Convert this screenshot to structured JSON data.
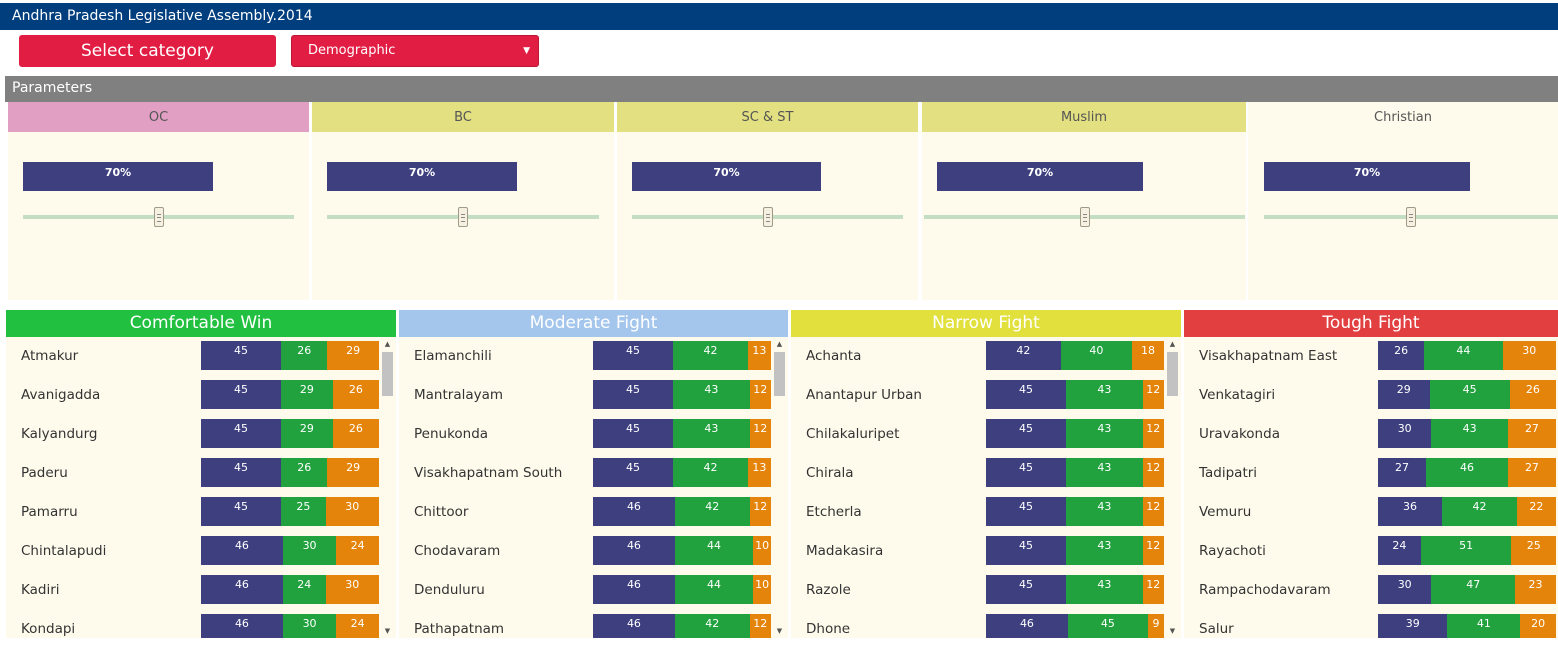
{
  "header": {
    "title": "Andhra Pradesh Legislative Assembly.2014"
  },
  "toolbar": {
    "category_button": "Select category",
    "category_select": "Demographic"
  },
  "params": {
    "title": "Parameters",
    "items": [
      {
        "label": "OC",
        "value": "70%",
        "fraction": 0.7,
        "slider": 0.5,
        "color": "#e09fc3"
      },
      {
        "label": "BC",
        "value": "70%",
        "fraction": 0.7,
        "slider": 0.5,
        "color": "#e2e081"
      },
      {
        "label": "SC & ST",
        "value": "70%",
        "fraction": 0.7,
        "slider": 0.5,
        "color": "#e2e081"
      },
      {
        "label": "Muslim",
        "value": "70%",
        "fraction": 0.7,
        "slider": 0.5,
        "color": "#e2e081"
      },
      {
        "label": "Christian",
        "value": "70%",
        "fraction": 0.7,
        "slider": 0.5,
        "color": "#fffbec"
      }
    ]
  },
  "categories": [
    {
      "title": "Comfortable Win",
      "color": "#22c040",
      "rows": [
        {
          "name": "Atmakur",
          "v": [
            45,
            26,
            29
          ]
        },
        {
          "name": "Avanigadda",
          "v": [
            45,
            29,
            26
          ]
        },
        {
          "name": "Kalyandurg",
          "v": [
            45,
            29,
            26
          ]
        },
        {
          "name": "Paderu",
          "v": [
            45,
            26,
            29
          ]
        },
        {
          "name": "Pamarru",
          "v": [
            45,
            25,
            30
          ]
        },
        {
          "name": "Chintalapudi",
          "v": [
            46,
            30,
            24
          ]
        },
        {
          "name": "Kadiri",
          "v": [
            46,
            24,
            30
          ]
        },
        {
          "name": "Kondapi",
          "v": [
            46,
            30,
            24
          ]
        }
      ]
    },
    {
      "title": "Moderate Fight",
      "color": "#a4c6ec",
      "rows": [
        {
          "name": "Elamanchili",
          "v": [
            45,
            42,
            13
          ]
        },
        {
          "name": "Mantralayam",
          "v": [
            45,
            43,
            12
          ]
        },
        {
          "name": "Penukonda",
          "v": [
            45,
            43,
            12
          ]
        },
        {
          "name": "Visakhapatnam South",
          "v": [
            45,
            42,
            13
          ]
        },
        {
          "name": "Chittoor",
          "v": [
            46,
            42,
            12
          ]
        },
        {
          "name": "Chodavaram",
          "v": [
            46,
            44,
            10
          ]
        },
        {
          "name": "Denduluru",
          "v": [
            46,
            44,
            10
          ]
        },
        {
          "name": "Pathapatnam",
          "v": [
            46,
            42,
            12
          ]
        }
      ]
    },
    {
      "title": "Narrow Fight",
      "color": "#e2e03c",
      "rows": [
        {
          "name": "Achanta",
          "v": [
            42,
            40,
            18
          ]
        },
        {
          "name": "Anantapur Urban",
          "v": [
            45,
            43,
            12
          ]
        },
        {
          "name": "Chilakaluripet",
          "v": [
            45,
            43,
            12
          ]
        },
        {
          "name": "Chirala",
          "v": [
            45,
            43,
            12
          ]
        },
        {
          "name": "Etcherla",
          "v": [
            45,
            43,
            12
          ]
        },
        {
          "name": "Madakasira",
          "v": [
            45,
            43,
            12
          ]
        },
        {
          "name": "Razole",
          "v": [
            45,
            43,
            12
          ]
        },
        {
          "name": "Dhone",
          "v": [
            46,
            45,
            9
          ]
        }
      ]
    },
    {
      "title": "Tough Fight",
      "color": "#e24040",
      "rows": [
        {
          "name": "Visakhapatnam East",
          "v": [
            26,
            44,
            30
          ]
        },
        {
          "name": "Venkatagiri",
          "v": [
            29,
            45,
            26
          ]
        },
        {
          "name": "Uravakonda",
          "v": [
            30,
            43,
            27
          ]
        },
        {
          "name": "Tadipatri",
          "v": [
            27,
            46,
            27
          ]
        },
        {
          "name": "Vemuru",
          "v": [
            36,
            42,
            22
          ]
        },
        {
          "name": "Rayachoti",
          "v": [
            24,
            51,
            25
          ]
        },
        {
          "name": "Rampachodavaram",
          "v": [
            30,
            47,
            23
          ]
        },
        {
          "name": "Salur",
          "v": [
            39,
            41,
            20
          ]
        }
      ]
    }
  ]
}
